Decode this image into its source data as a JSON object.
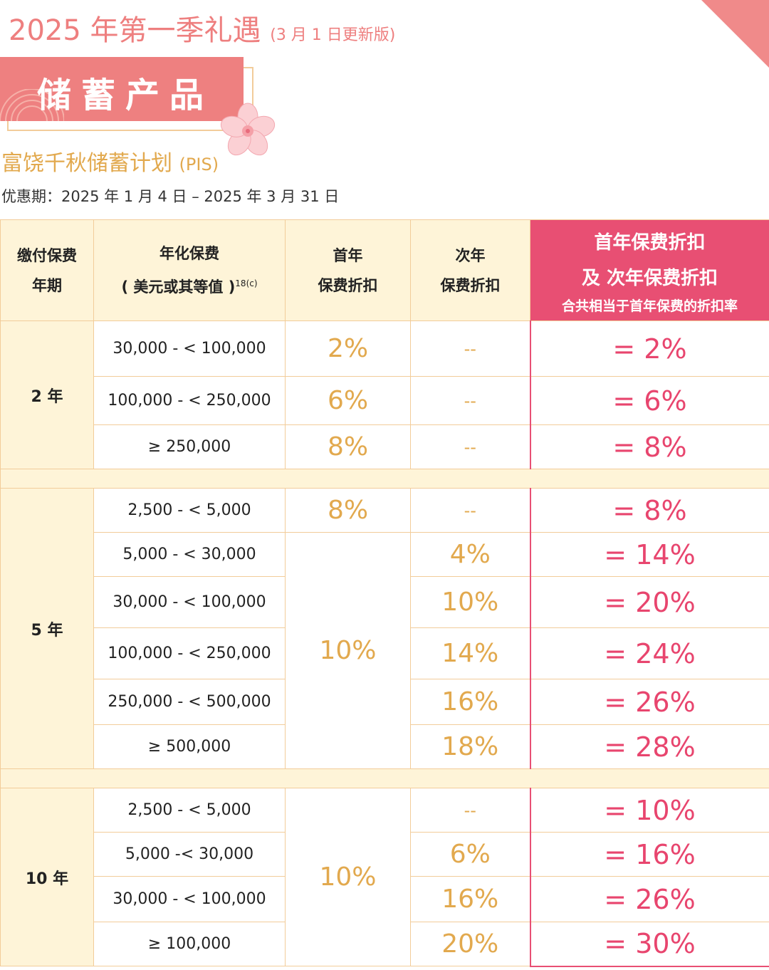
{
  "header": {
    "title": "2025 年第一季礼遇",
    "subtitle": "(3 月 1 日更新版)",
    "banner": "储蓄产品"
  },
  "plan": {
    "name": "富饶千秋储蓄计划",
    "code": "(PIS)",
    "period": "优惠期：2025 年 1 月 4 日 – 2025 年 3 月 31 日"
  },
  "table": {
    "headers": {
      "term": [
        "缴付保费",
        "年期"
      ],
      "premium": [
        "年化保费",
        "( 美元或其等值 )"
      ],
      "premium_note": "18(c)",
      "first": [
        "首年",
        "保费折扣"
      ],
      "second": [
        "次年",
        "保费折扣"
      ],
      "combined": [
        "首年保费折扣",
        "及 次年保费折扣"
      ],
      "combined_note": "合共相当于首年保费的折扣率"
    },
    "groups": [
      {
        "term": "2 年",
        "rows": [
          {
            "range": "30,000 - < 100,000",
            "first": "2%",
            "second": "--",
            "total": "= 2%"
          },
          {
            "range": "100,000 - < 250,000",
            "first": "6%",
            "second": "--",
            "total": "= 6%"
          },
          {
            "range": "≥ 250,000",
            "first": "8%",
            "second": "--",
            "total": "= 8%"
          }
        ]
      },
      {
        "term": "5 年",
        "first_top": "8%",
        "first_merged": "10%",
        "rows": [
          {
            "range": "2,500 - < 5,000",
            "second": "--",
            "total": "= 8%"
          },
          {
            "range": "5,000 - < 30,000",
            "second": "4%",
            "total": "= 14%"
          },
          {
            "range": "30,000 - < 100,000",
            "second": "10%",
            "total": "= 20%"
          },
          {
            "range": "100,000 - < 250,000",
            "second": "14%",
            "total": "= 24%"
          },
          {
            "range": "250,000 - < 500,000",
            "second": "16%",
            "total": "= 26%"
          },
          {
            "range": "≥ 500,000",
            "second": "18%",
            "total": "= 28%"
          }
        ]
      },
      {
        "term": "10 年",
        "first_merged": "10%",
        "rows": [
          {
            "range": "2,500 - < 5,000",
            "second": "--",
            "total": "= 10%"
          },
          {
            "range": "5,000 -< 30,000",
            "second": "6%",
            "total": "= 16%"
          },
          {
            "range": "30,000 - < 100,000",
            "second": "16%",
            "total": "= 26%"
          },
          {
            "range": "≥ 100,000",
            "second": "20%",
            "total": "= 30%"
          }
        ]
      }
    ]
  },
  "colors": {
    "accent_pink": "#ee7f7f",
    "gold": "#e2a94e",
    "highlight": "#e84f73",
    "cream": "#fef4d8"
  }
}
